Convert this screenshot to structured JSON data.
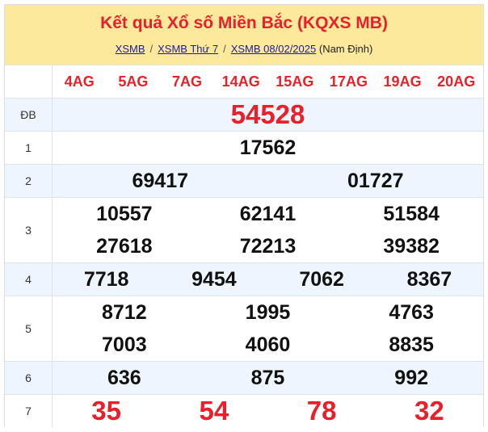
{
  "header": {
    "title": "Kết quả Xổ số Miền Bắc (KQXS MB)",
    "breadcrumb": [
      {
        "label": "XSMB"
      },
      {
        "label": "XSMB Thứ 7"
      },
      {
        "label": "XSMB 08/02/2025"
      }
    ],
    "separator": "/",
    "province": "(Nam Định)"
  },
  "codes": [
    "4AG",
    "5AG",
    "7AG",
    "14AG",
    "15AG",
    "17AG",
    "19AG",
    "20AG"
  ],
  "prizes": [
    {
      "label": "ĐB",
      "cols": 1,
      "numbers": [
        "54528"
      ],
      "red": true,
      "big": true
    },
    {
      "label": "1",
      "cols": 1,
      "numbers": [
        "17562"
      ]
    },
    {
      "label": "2",
      "cols": 2,
      "numbers": [
        "69417",
        "01727"
      ]
    },
    {
      "label": "3",
      "cols": 3,
      "numbers": [
        "10557",
        "62141",
        "51584",
        "27618",
        "72213",
        "39382"
      ]
    },
    {
      "label": "4",
      "cols": 4,
      "numbers": [
        "7718",
        "9454",
        "7062",
        "8367"
      ]
    },
    {
      "label": "5",
      "cols": 3,
      "numbers": [
        "8712",
        "1995",
        "4763",
        "7003",
        "4060",
        "8835"
      ]
    },
    {
      "label": "6",
      "cols": 3,
      "numbers": [
        "636",
        "875",
        "992"
      ]
    },
    {
      "label": "7",
      "cols": 4,
      "numbers": [
        "35",
        "54",
        "78",
        "32"
      ],
      "red": true,
      "big": true
    }
  ],
  "colors": {
    "accent": "#e8202a",
    "header_bg": "#fde99c",
    "alt_row": "#eef5fe"
  }
}
